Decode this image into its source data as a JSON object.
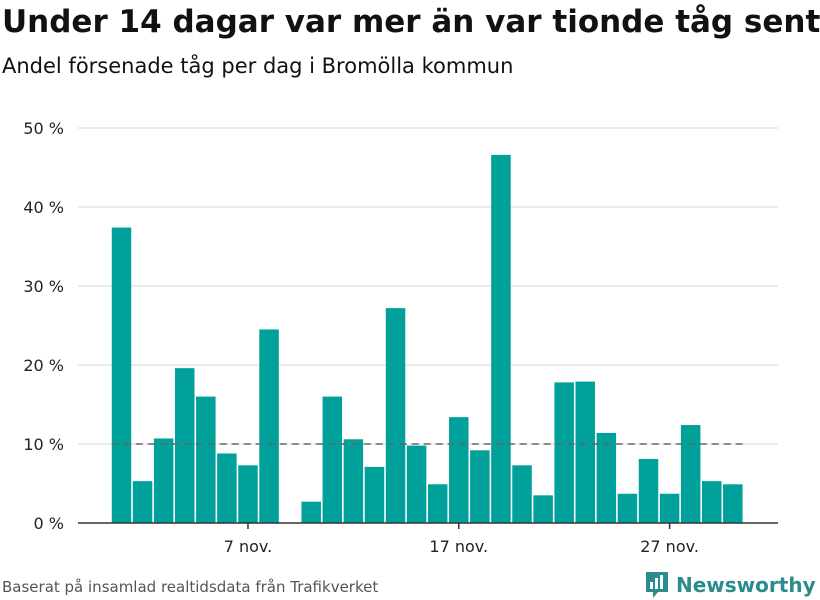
{
  "header": {
    "title": "Under 14 dagar var mer än var tionde tåg sent",
    "subtitle": "Andel försenade tåg per dag i Bromölla kommun"
  },
  "footer": {
    "source": "Baserat på insamlad realtidsdata från Trafikverket",
    "logo_text": "Newsworthy"
  },
  "colors": {
    "bar": "#00a19a",
    "reference_line": "#666666",
    "grid": "#d9d9d9",
    "axis": "#333333",
    "logo": "#2a8c8c"
  },
  "chart_data": {
    "type": "bar",
    "x_unit": "day of month (November)",
    "x": [
      1,
      2,
      3,
      4,
      5,
      6,
      7,
      8,
      9,
      10,
      11,
      12,
      13,
      14,
      15,
      16,
      17,
      18,
      19,
      20,
      21,
      22,
      23,
      24,
      25,
      26,
      27,
      28,
      29,
      30
    ],
    "values": [
      37.4,
      5.3,
      10.7,
      19.6,
      16.0,
      8.8,
      7.3,
      24.5,
      null,
      2.7,
      16.0,
      10.6,
      7.1,
      27.2,
      9.8,
      4.9,
      13.4,
      9.2,
      46.6,
      7.3,
      3.5,
      17.8,
      17.9,
      11.4,
      3.7,
      8.1,
      3.7,
      12.4,
      5.3,
      4.9
    ],
    "reference_line": 10,
    "ylim": [
      0,
      50
    ],
    "y_ticks": [
      0,
      10,
      20,
      30,
      40,
      50
    ],
    "y_tick_labels": [
      "0 %",
      "10 %",
      "20 %",
      "30 %",
      "40 %",
      "50 %"
    ],
    "x_ticks": [
      7,
      17,
      27
    ],
    "x_tick_labels": [
      "7 nov.",
      "17 nov.",
      "27 nov."
    ],
    "grid": true,
    "legend": "none"
  }
}
